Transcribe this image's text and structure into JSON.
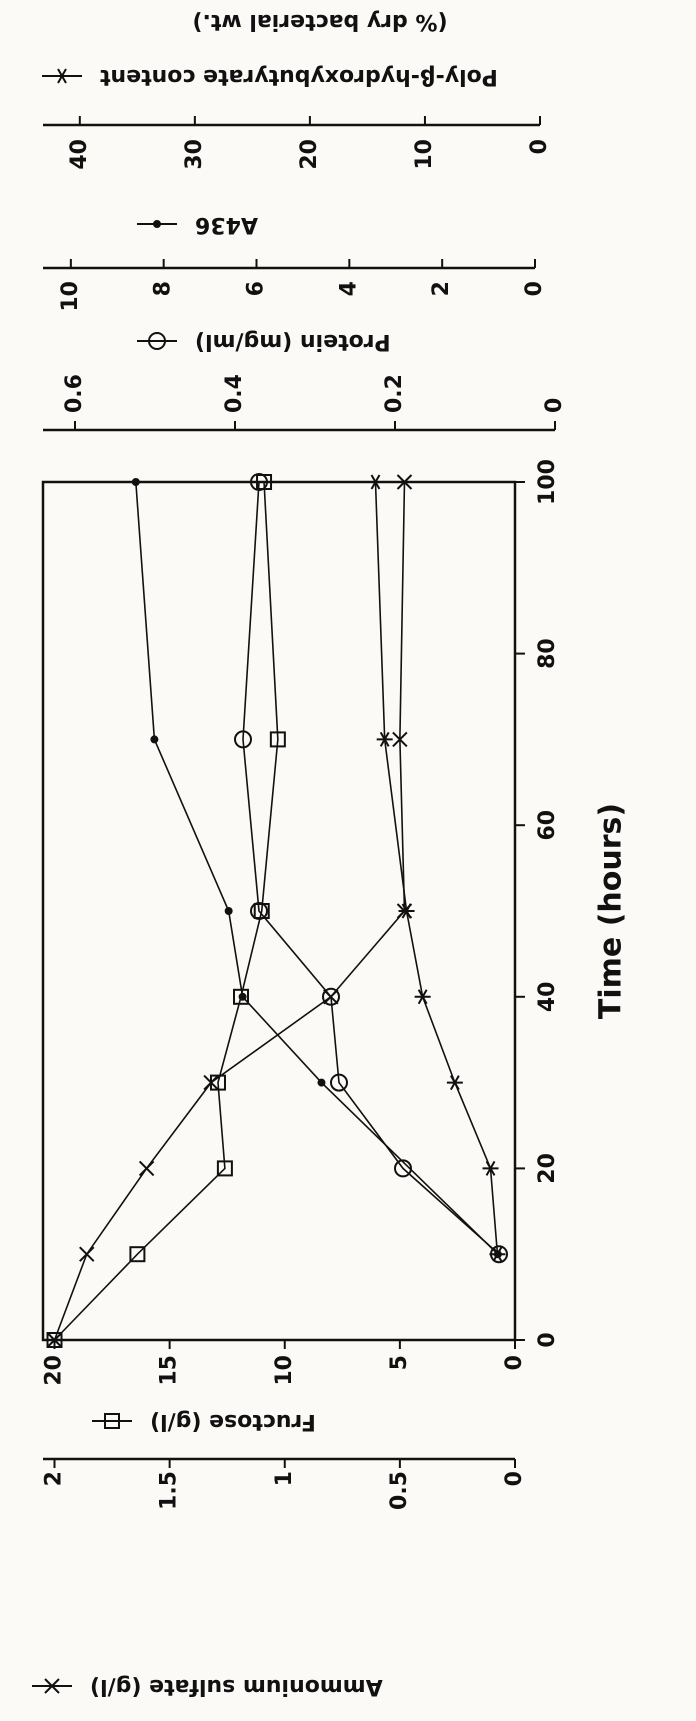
{
  "chart_data": {
    "type": "scatter",
    "x_label": "Time (hours)",
    "xlim": [
      0,
      100
    ],
    "xticks": [
      0,
      20,
      40,
      60,
      80,
      100
    ],
    "series": [
      {
        "name": "Fructose (g/l)",
        "marker": "square",
        "color": "#111111",
        "side": "left",
        "x": [
          0,
          10,
          20,
          30,
          40,
          50,
          70,
          100
        ],
        "values": [
          20,
          16.4,
          12.6,
          12.9,
          11.9,
          11.0,
          10.3,
          10.9
        ],
        "ylim": [
          0,
          20.5
        ],
        "yticks": [
          0,
          5,
          10,
          15,
          20
        ]
      },
      {
        "name": "Ammonium sulfate (g/l)",
        "marker": "x",
        "color": "#111111",
        "side": "left",
        "x": [
          0,
          10,
          20,
          30,
          40,
          50,
          70,
          100
        ],
        "values": [
          2.0,
          1.86,
          1.6,
          1.32,
          0.8,
          0.48,
          0.5,
          0.48
        ],
        "ylim": [
          0,
          2.05
        ],
        "yticks": [
          0,
          0.5,
          1,
          1.5,
          2
        ]
      },
      {
        "name": "Protein (mg/ml)",
        "marker": "circle",
        "color": "#111111",
        "side": "right",
        "x": [
          10,
          20,
          30,
          40,
          50,
          70,
          100
        ],
        "values": [
          0.07,
          0.19,
          0.27,
          0.28,
          0.37,
          0.39,
          0.37
        ],
        "ylim": [
          0,
          0.64
        ],
        "yticks": [
          0,
          0.2,
          0.4,
          0.6
        ]
      },
      {
        "name": "A436",
        "marker": "dot",
        "color": "#111111",
        "side": "right",
        "x": [
          10,
          30,
          40,
          50,
          70,
          100
        ],
        "values": [
          0.8,
          4.6,
          6.3,
          6.6,
          8.2,
          8.6
        ],
        "ylim": [
          0,
          10.6
        ],
        "yticks": [
          0,
          2,
          4,
          6,
          8,
          10
        ]
      },
      {
        "name": "Poly-β-hydroxybutyrate content",
        "unit": "(% dry bacterial wt.)",
        "marker": "asterisk",
        "color": "#111111",
        "side": "right",
        "x": [
          10,
          20,
          30,
          40,
          50,
          70,
          100
        ],
        "values": [
          3.7,
          4.3,
          7.4,
          10.2,
          11.6,
          13.5,
          14.3
        ],
        "ylim": [
          0,
          43.2
        ],
        "yticks": [
          0,
          10,
          20,
          30,
          40
        ]
      }
    ]
  }
}
